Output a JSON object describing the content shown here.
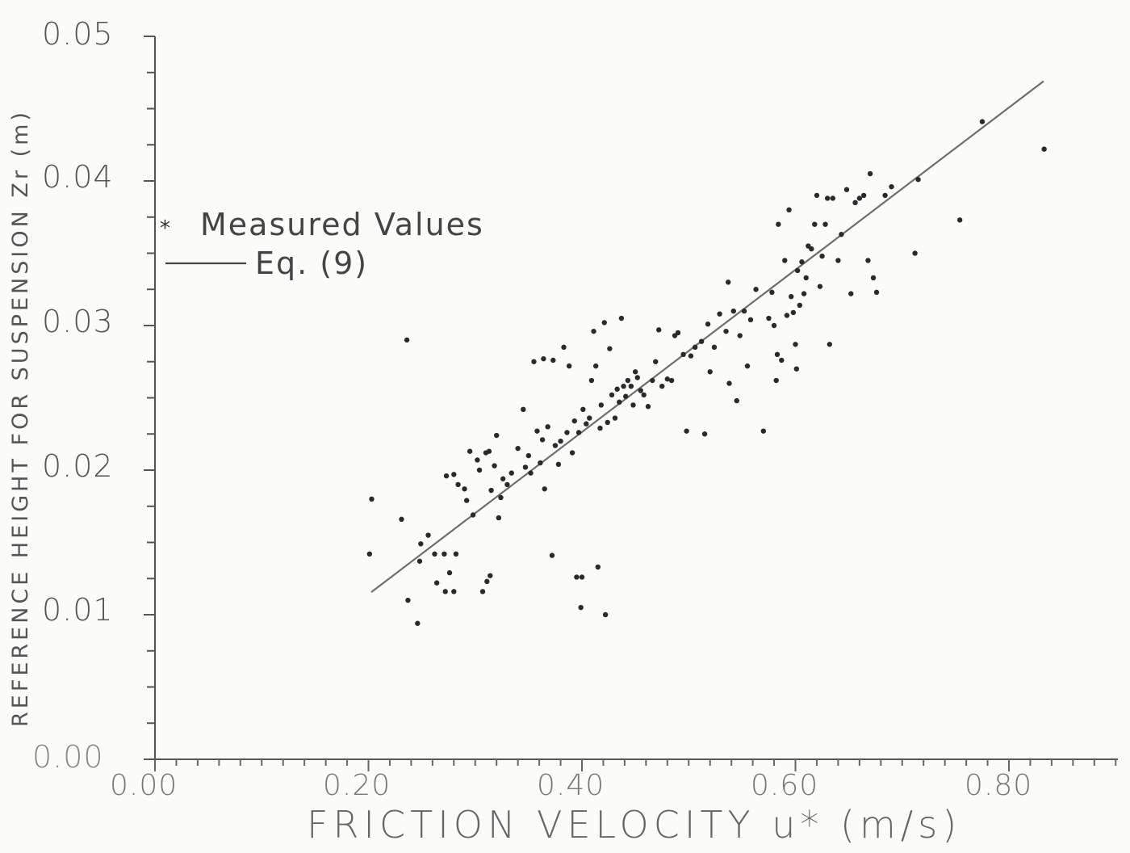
{
  "chart_data": {
    "type": "scatter",
    "title": "",
    "xlabel": "FRICTION VELOCITY u* (m/s)",
    "ylabel": "REFERENCE HEIGHT FOR SUSPENSION Zr (m)",
    "xlim": [
      0.0,
      0.9
    ],
    "ylim": [
      0.0,
      0.05
    ],
    "x_ticks": [
      "0.00",
      "0.20",
      "0.40",
      "0.60",
      "0.80"
    ],
    "y_ticks": [
      "0.00",
      "0.01",
      "0.02",
      "0.03",
      "0.04",
      "0.05"
    ],
    "grid": false,
    "legend": {
      "position": "upper-left",
      "entries": [
        {
          "label": "Measured Values",
          "marker": "*"
        },
        {
          "label": "Eq. (9)",
          "marker": "line"
        }
      ]
    },
    "series": [
      {
        "name": "Measured Values",
        "type": "scatter",
        "points": [
          [
            0.203,
            0.018
          ],
          [
            0.201,
            0.0142
          ],
          [
            0.231,
            0.0166
          ],
          [
            0.236,
            0.029
          ],
          [
            0.237,
            0.011
          ],
          [
            0.246,
            0.0094
          ],
          [
            0.248,
            0.0137
          ],
          [
            0.249,
            0.0149
          ],
          [
            0.256,
            0.0155
          ],
          [
            0.262,
            0.0142
          ],
          [
            0.264,
            0.0122
          ],
          [
            0.271,
            0.0142
          ],
          [
            0.272,
            0.0116
          ],
          [
            0.273,
            0.0196
          ],
          [
            0.276,
            0.0129
          ],
          [
            0.28,
            0.0116
          ],
          [
            0.28,
            0.0197
          ],
          [
            0.282,
            0.0142
          ],
          [
            0.284,
            0.019
          ],
          [
            0.29,
            0.0187
          ],
          [
            0.292,
            0.0179
          ],
          [
            0.295,
            0.0213
          ],
          [
            0.298,
            0.0169
          ],
          [
            0.302,
            0.0207
          ],
          [
            0.304,
            0.02
          ],
          [
            0.307,
            0.0116
          ],
          [
            0.31,
            0.0212
          ],
          [
            0.311,
            0.0123
          ],
          [
            0.313,
            0.0213
          ],
          [
            0.314,
            0.0127
          ],
          [
            0.315,
            0.0186
          ],
          [
            0.318,
            0.0203
          ],
          [
            0.32,
            0.0224
          ],
          [
            0.322,
            0.0167
          ],
          [
            0.324,
            0.0181
          ],
          [
            0.326,
            0.0194
          ],
          [
            0.33,
            0.019
          ],
          [
            0.334,
            0.0198
          ],
          [
            0.34,
            0.0215
          ],
          [
            0.345,
            0.0242
          ],
          [
            0.347,
            0.0202
          ],
          [
            0.35,
            0.021
          ],
          [
            0.352,
            0.0198
          ],
          [
            0.355,
            0.0275
          ],
          [
            0.358,
            0.0227
          ],
          [
            0.361,
            0.0205
          ],
          [
            0.363,
            0.0221
          ],
          [
            0.364,
            0.0277
          ],
          [
            0.365,
            0.0187
          ],
          [
            0.368,
            0.023
          ],
          [
            0.372,
            0.0141
          ],
          [
            0.373,
            0.0276
          ],
          [
            0.375,
            0.0217
          ],
          [
            0.378,
            0.0204
          ],
          [
            0.38,
            0.022
          ],
          [
            0.383,
            0.0285
          ],
          [
            0.386,
            0.0226
          ],
          [
            0.388,
            0.0272
          ],
          [
            0.391,
            0.0212
          ],
          [
            0.393,
            0.0234
          ],
          [
            0.395,
            0.0126
          ],
          [
            0.397,
            0.0226
          ],
          [
            0.399,
            0.0105
          ],
          [
            0.4,
            0.0126
          ],
          [
            0.401,
            0.0242
          ],
          [
            0.404,
            0.0232
          ],
          [
            0.407,
            0.0236
          ],
          [
            0.409,
            0.0262
          ],
          [
            0.411,
            0.0296
          ],
          [
            0.413,
            0.0272
          ],
          [
            0.415,
            0.0133
          ],
          [
            0.417,
            0.0229
          ],
          [
            0.418,
            0.0245
          ],
          [
            0.421,
            0.0302
          ],
          [
            0.422,
            0.01
          ],
          [
            0.424,
            0.0233
          ],
          [
            0.426,
            0.0284
          ],
          [
            0.428,
            0.0252
          ],
          [
            0.431,
            0.0236
          ],
          [
            0.433,
            0.0256
          ],
          [
            0.435,
            0.0247
          ],
          [
            0.437,
            0.0305
          ],
          [
            0.439,
            0.0258
          ],
          [
            0.441,
            0.0251
          ],
          [
            0.443,
            0.0262
          ],
          [
            0.446,
            0.0258
          ],
          [
            0.448,
            0.0245
          ],
          [
            0.45,
            0.0268
          ],
          [
            0.452,
            0.0264
          ],
          [
            0.455,
            0.0255
          ],
          [
            0.458,
            0.0252
          ],
          [
            0.462,
            0.0244
          ],
          [
            0.466,
            0.0262
          ],
          [
            0.469,
            0.0275
          ],
          [
            0.472,
            0.0297
          ],
          [
            0.475,
            0.0258
          ],
          [
            0.48,
            0.0263
          ],
          [
            0.484,
            0.0262
          ],
          [
            0.487,
            0.0293
          ],
          [
            0.49,
            0.0295
          ],
          [
            0.495,
            0.028
          ],
          [
            0.498,
            0.0227
          ],
          [
            0.502,
            0.0279
          ],
          [
            0.506,
            0.0285
          ],
          [
            0.512,
            0.0289
          ],
          [
            0.515,
            0.0225
          ],
          [
            0.518,
            0.0301
          ],
          [
            0.52,
            0.0268
          ],
          [
            0.524,
            0.0285
          ],
          [
            0.529,
            0.0308
          ],
          [
            0.535,
            0.0296
          ],
          [
            0.537,
            0.033
          ],
          [
            0.538,
            0.026
          ],
          [
            0.542,
            0.031
          ],
          [
            0.545,
            0.0248
          ],
          [
            0.548,
            0.0293
          ],
          [
            0.552,
            0.031
          ],
          [
            0.555,
            0.0272
          ],
          [
            0.558,
            0.0304
          ],
          [
            0.563,
            0.0325
          ],
          [
            0.57,
            0.0227
          ],
          [
            0.575,
            0.0305
          ],
          [
            0.578,
            0.0323
          ],
          [
            0.58,
            0.03
          ],
          [
            0.582,
            0.0262
          ],
          [
            0.583,
            0.028
          ],
          [
            0.584,
            0.037
          ],
          [
            0.587,
            0.0276
          ],
          [
            0.59,
            0.0345
          ],
          [
            0.592,
            0.0307
          ],
          [
            0.594,
            0.038
          ],
          [
            0.596,
            0.032
          ],
          [
            0.598,
            0.0309
          ],
          [
            0.6,
            0.0287
          ],
          [
            0.601,
            0.027
          ],
          [
            0.602,
            0.0338
          ],
          [
            0.604,
            0.0314
          ],
          [
            0.606,
            0.0344
          ],
          [
            0.608,
            0.0322
          ],
          [
            0.61,
            0.0333
          ],
          [
            0.612,
            0.0355
          ],
          [
            0.615,
            0.0353
          ],
          [
            0.618,
            0.037
          ],
          [
            0.62,
            0.039
          ],
          [
            0.623,
            0.0327
          ],
          [
            0.625,
            0.0348
          ],
          [
            0.628,
            0.037
          ],
          [
            0.63,
            0.0388
          ],
          [
            0.632,
            0.0287
          ],
          [
            0.635,
            0.0388
          ],
          [
            0.64,
            0.0345
          ],
          [
            0.643,
            0.0363
          ],
          [
            0.648,
            0.0394
          ],
          [
            0.652,
            0.0322
          ],
          [
            0.656,
            0.0385
          ],
          [
            0.66,
            0.0388
          ],
          [
            0.664,
            0.039
          ],
          [
            0.668,
            0.0345
          ],
          [
            0.67,
            0.0405
          ],
          [
            0.673,
            0.0333
          ],
          [
            0.676,
            0.0323
          ],
          [
            0.684,
            0.039
          ],
          [
            0.69,
            0.0396
          ],
          [
            0.712,
            0.035
          ],
          [
            0.715,
            0.0401
          ],
          [
            0.754,
            0.0373
          ],
          [
            0.775,
            0.0441
          ],
          [
            0.833,
            0.0422
          ]
        ]
      },
      {
        "name": "Eq. (9)",
        "type": "line",
        "x": [
          0.2026,
          0.8325
        ],
        "y": [
          0.01156,
          0.0469
        ]
      }
    ]
  },
  "axes": {
    "x": {
      "label": "FRICTION VELOCITY u* (m/s)",
      "ticks": [
        "0.00",
        "0.20",
        "0.40",
        "0.60",
        "0.80"
      ]
    },
    "y": {
      "label": "REFERENCE HEIGHT FOR SUSPENSION Zr (m)",
      "ticks": [
        "0.00",
        "0.01",
        "0.02",
        "0.03",
        "0.04",
        "0.05"
      ]
    }
  },
  "legend": {
    "measured": {
      "marker": "*",
      "label": "Measured Values"
    },
    "equation": {
      "label": "Eq. (9)"
    }
  },
  "colors": {
    "background": "#fbfbf9",
    "ink": "#2a2a2a",
    "axis": "#555555",
    "fit_line": "#6e6e6e"
  }
}
